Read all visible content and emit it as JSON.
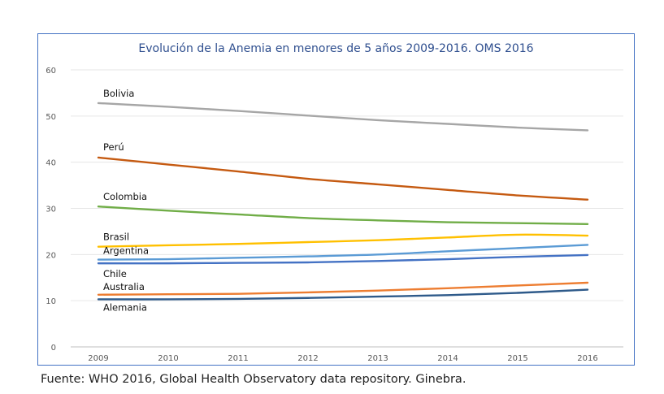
{
  "chart_data": {
    "type": "line",
    "title": "Evolución de la Anemia en menores de 5 años 2009-2016. OMS 2016",
    "xlabel": "",
    "ylabel": "",
    "x": [
      "2009",
      "2010",
      "2011",
      "2012",
      "2013",
      "2014",
      "2015",
      "2016"
    ],
    "ylim": [
      0,
      60
    ],
    "yticks": [
      "0",
      "10",
      "20",
      "30",
      "40",
      "50",
      "60"
    ],
    "grid": true,
    "series": [
      {
        "name": "Bolivia",
        "color": "#a6a6a6",
        "values": [
          52.8,
          52.0,
          51.1,
          50.1,
          49.1,
          48.3,
          47.5,
          46.9
        ]
      },
      {
        "name": "Perú",
        "color": "#c55a11",
        "values": [
          41.0,
          39.5,
          38.0,
          36.4,
          35.2,
          34.0,
          32.8,
          31.9
        ]
      },
      {
        "name": "Colombia",
        "color": "#70ad47",
        "values": [
          30.4,
          29.5,
          28.7,
          27.9,
          27.4,
          27.0,
          26.8,
          26.6
        ]
      },
      {
        "name": "Brasil",
        "color": "#ffc000",
        "values": [
          21.7,
          22.0,
          22.3,
          22.7,
          23.1,
          23.7,
          24.3,
          24.1
        ]
      },
      {
        "name": "Argentina",
        "color": "#5b9bd5",
        "values": [
          18.9,
          19.0,
          19.3,
          19.6,
          20.0,
          20.7,
          21.4,
          22.1
        ]
      },
      {
        "name": "Chile",
        "color": "#4472c4",
        "values": [
          18.1,
          18.1,
          18.2,
          18.3,
          18.6,
          19.0,
          19.5,
          19.9
        ]
      },
      {
        "name": "Australia",
        "color": "#ed7d31",
        "values": [
          11.3,
          11.4,
          11.5,
          11.8,
          12.2,
          12.7,
          13.3,
          13.9
        ]
      },
      {
        "name": "Alemania",
        "color": "#2e5a8a",
        "values": [
          10.3,
          10.3,
          10.4,
          10.6,
          10.9,
          11.2,
          11.7,
          12.4
        ]
      }
    ],
    "annotations": [
      "Bolivia",
      "Perú",
      "Colombia",
      "Brasil",
      "Argentina",
      "Chile",
      "Australia",
      "Alemania"
    ]
  },
  "footer": {
    "source": "Fuente: WHO 2016, Global Health Observatory data repository. Ginebra."
  }
}
